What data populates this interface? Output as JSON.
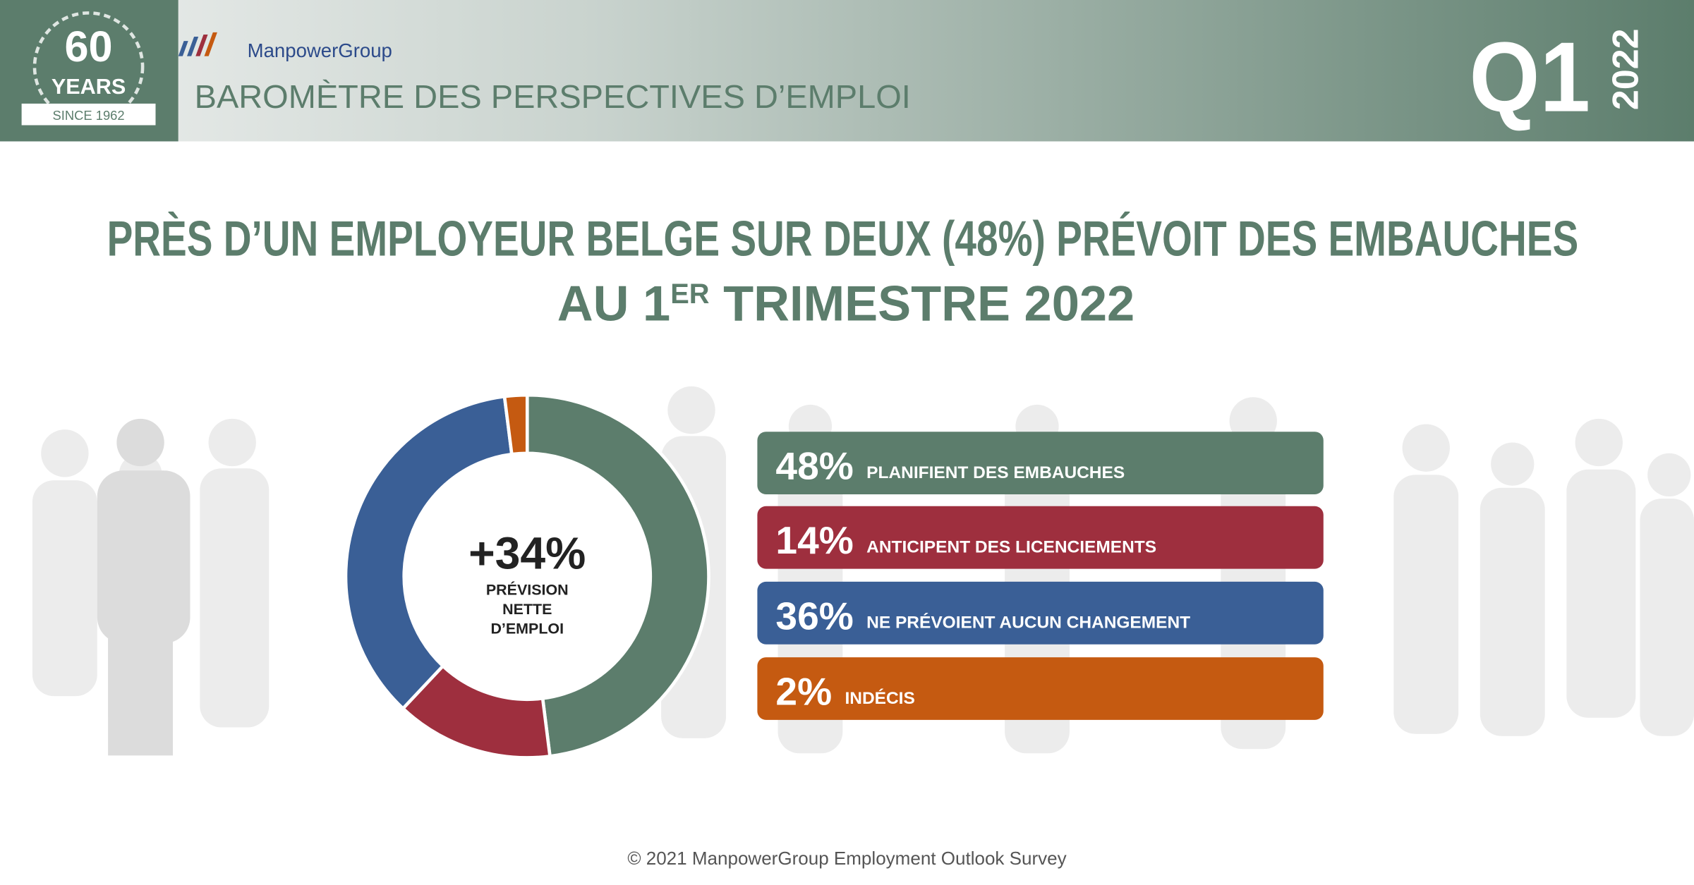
{
  "header": {
    "badge_number": "60",
    "badge_years": "YEARS",
    "badge_since": "SINCE 1962",
    "brand": "ManpowerGroup",
    "subtitle": "BAROMÈTRE DES PERSPECTIVES D’EMPLOI",
    "quarter": "Q1",
    "year": "2022"
  },
  "chart_data": {
    "type": "donut",
    "title_line1": "PRÈS D’UN EMPLOYEUR BELGE SUR DEUX (48%) PRÉVOIT DES EMBAUCHES",
    "title_line2_start": "AU 1",
    "title_line2_sup": "ER",
    "title_line2_end": " TRIMESTRE 2022",
    "center_value": "+34%",
    "center_label": [
      "PRÉVISION",
      "NETTE",
      "D’EMPLOI"
    ],
    "categories": [
      "PLANIFIENT DES EMBAUCHES",
      "ANTICIPENT DES LICENCIEMENTS",
      "NE PRÉVOIENT AUCUN CHANGEMENT",
      "INDÉCIS"
    ],
    "values": [
      48,
      14,
      36,
      2
    ],
    "value_labels": [
      "48%",
      "14%",
      "36%",
      "2%"
    ],
    "colors": [
      "#5c7d6c",
      "#9e2f3e",
      "#3a5f96",
      "#c55a11"
    ]
  },
  "footer": "© 2021 ManpowerGroup Employment Outlook Survey"
}
